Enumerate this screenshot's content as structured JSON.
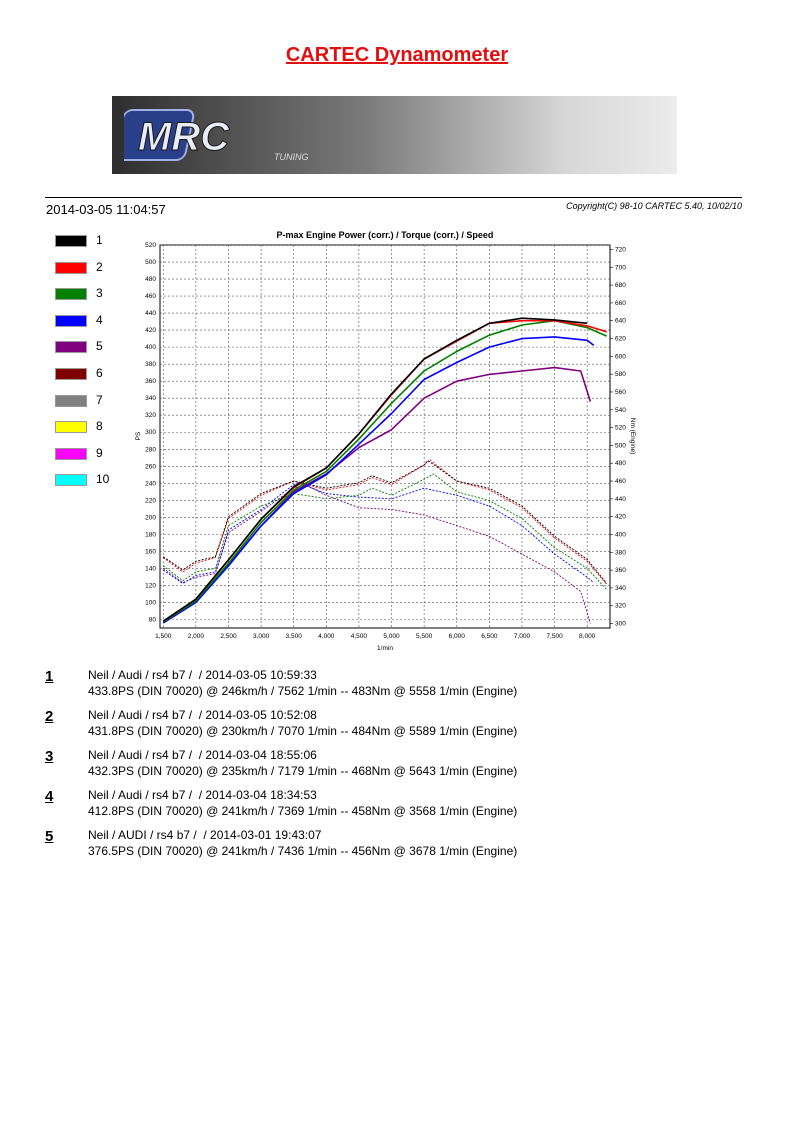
{
  "header": {
    "title": "CARTEC Dynamometer",
    "datetime": "2014-03-05 11:04:57",
    "copyright": "Copyright(C) 98-10 CARTEC 5.40, 10/02/10"
  },
  "banner": {
    "logo_text": "MRC",
    "logo_subtext": "TUNING"
  },
  "legend": [
    {
      "num": "1",
      "color": "#000000"
    },
    {
      "num": "2",
      "color": "#ff0000"
    },
    {
      "num": "3",
      "color": "#008000"
    },
    {
      "num": "4",
      "color": "#0000ff"
    },
    {
      "num": "5",
      "color": "#800080"
    },
    {
      "num": "6",
      "color": "#800000"
    },
    {
      "num": "7",
      "color": "#808080"
    },
    {
      "num": "8",
      "color": "#ffff00"
    },
    {
      "num": "9",
      "color": "#ff00ff"
    },
    {
      "num": "10",
      "color": "#00ffff"
    }
  ],
  "runs": [
    {
      "num": "1",
      "line1": "Neil / Audi / rs4 b7 /  / 2014-03-05 10:59:33",
      "line2": "433.8PS (DIN 70020) @ 246km/h / 7562 1/min -- 483Nm @ 5558 1/min (Engine)"
    },
    {
      "num": "2",
      "line1": "Neil / Audi / rs4 b7 /  / 2014-03-05 10:52:08",
      "line2": "431.8PS (DIN 70020) @ 230km/h / 7070 1/min -- 484Nm @ 5589 1/min (Engine)"
    },
    {
      "num": "3",
      "line1": "Neil / Audi / rs4 b7 /  / 2014-03-04 18:55:06",
      "line2": "432.3PS (DIN 70020) @ 235km/h / 7179 1/min -- 468Nm @ 5643 1/min (Engine)"
    },
    {
      "num": "4",
      "line1": "Neil / Audi / rs4 b7 /  / 2014-03-04 18:34:53",
      "line2": "412.8PS (DIN 70020) @ 241km/h / 7369 1/min -- 458Nm @ 3568 1/min (Engine)"
    },
    {
      "num": "5",
      "line1": "Neil / AUDI / rs4 b7 /  / 2014-03-01 19:43:07",
      "line2": "376.5PS (DIN 70020) @ 241km/h / 7436 1/min -- 456Nm @ 3678 1/min (Engine)"
    }
  ],
  "chart_data": {
    "type": "line",
    "title": "P-max Engine Power (corr.) / Torque (corr.) / Speed",
    "xlabel": "1/min",
    "ylabel_left": "PS",
    "ylabel_right": "Nm (Engine)",
    "xlim": [
      1450,
      8350
    ],
    "ylim_left": [
      70,
      520
    ],
    "ylim_right": [
      295,
      725
    ],
    "x_ticks": [
      1500,
      2000,
      2500,
      3000,
      3500,
      4000,
      4500,
      5000,
      5500,
      6000,
      6500,
      7000,
      7500,
      8000
    ],
    "x_tick_labels": [
      "1,500",
      "2,000",
      "2,500",
      "3,000",
      "3,500",
      "4,000",
      "4,500",
      "5,000",
      "5,500",
      "6,000",
      "6,500",
      "7,000",
      "7,500",
      "8,000"
    ],
    "y_left_ticks": [
      80,
      100,
      120,
      140,
      160,
      180,
      200,
      220,
      240,
      260,
      280,
      300,
      320,
      340,
      360,
      380,
      400,
      420,
      440,
      460,
      480,
      500,
      520
    ],
    "y_right_ticks": [
      300,
      320,
      340,
      360,
      380,
      400,
      420,
      440,
      460,
      480,
      500,
      520,
      540,
      560,
      580,
      600,
      620,
      640,
      660,
      680,
      700,
      720
    ],
    "grid": true,
    "series": [
      {
        "name": "1",
        "color": "#000000",
        "kind": "power",
        "x": [
          1500,
          2000,
          2500,
          3000,
          3500,
          4000,
          4500,
          5000,
          5500,
          6000,
          6500,
          7000,
          7500,
          8000
        ],
        "y": [
          78,
          104,
          150,
          198,
          236,
          258,
          298,
          345,
          386,
          408,
          428,
          434,
          432,
          428
        ]
      },
      {
        "name": "2",
        "color": "#ff0000",
        "kind": "power",
        "x": [
          1500,
          2000,
          2500,
          3000,
          3500,
          4000,
          4500,
          5000,
          5500,
          6000,
          6500,
          7000,
          7500,
          8000,
          8300
        ],
        "y": [
          78,
          104,
          150,
          198,
          235,
          258,
          298,
          344,
          386,
          407,
          428,
          431,
          431,
          425,
          418
        ]
      },
      {
        "name": "3",
        "color": "#008000",
        "kind": "power",
        "x": [
          1500,
          2000,
          2500,
          3000,
          3500,
          4000,
          4500,
          5000,
          5500,
          6000,
          6500,
          7000,
          7500,
          8000,
          8300
        ],
        "y": [
          77,
          102,
          146,
          194,
          232,
          254,
          292,
          334,
          372,
          395,
          414,
          426,
          431,
          423,
          413
        ]
      },
      {
        "name": "4",
        "color": "#0000ff",
        "kind": "power",
        "x": [
          1500,
          2000,
          2500,
          3000,
          3500,
          4000,
          4500,
          5000,
          5500,
          6000,
          6500,
          7000,
          7500,
          8000,
          8100
        ],
        "y": [
          76,
          100,
          143,
          190,
          228,
          250,
          286,
          322,
          362,
          382,
          400,
          410,
          412,
          408,
          402
        ]
      },
      {
        "name": "5",
        "color": "#800080",
        "kind": "power",
        "x": [
          1500,
          2000,
          2500,
          3000,
          3500,
          4000,
          4500,
          5000,
          5500,
          6000,
          6500,
          7000,
          7500,
          7900,
          8050
        ],
        "y": [
          77,
          101,
          144,
          190,
          230,
          251,
          282,
          303,
          340,
          360,
          368,
          372,
          376,
          372,
          336
        ]
      },
      {
        "name": "1",
        "color": "#000000",
        "kind": "torque",
        "x": [
          1500,
          1800,
          2000,
          2300,
          2500,
          3000,
          3500,
          4000,
          4500,
          4700,
          5000,
          5500,
          5558,
          6000,
          6500,
          7000,
          7500,
          8000,
          8300
        ],
        "y": [
          375,
          360,
          370,
          375,
          420,
          446,
          460,
          452,
          458,
          466,
          458,
          478,
          483,
          460,
          452,
          432,
          398,
          372,
          345
        ]
      },
      {
        "name": "2",
        "color": "#ff0000",
        "kind": "torque",
        "x": [
          1500,
          1800,
          2000,
          2300,
          2500,
          3000,
          3500,
          4000,
          4500,
          4700,
          5000,
          5500,
          5589,
          6000,
          6500,
          7000,
          7500,
          8000,
          8300
        ],
        "y": [
          374,
          358,
          368,
          374,
          418,
          444,
          460,
          450,
          456,
          464,
          456,
          478,
          484,
          460,
          450,
          430,
          396,
          370,
          344
        ]
      },
      {
        "name": "3",
        "color": "#008000",
        "kind": "torque",
        "x": [
          1500,
          1800,
          2000,
          2300,
          2500,
          3000,
          3500,
          4000,
          4500,
          4700,
          5000,
          5500,
          5643,
          6000,
          6500,
          7000,
          7500,
          8000,
          8300
        ],
        "y": [
          365,
          348,
          358,
          362,
          410,
          432,
          446,
          440,
          444,
          452,
          444,
          462,
          468,
          448,
          438,
          418,
          385,
          362,
          338
        ]
      },
      {
        "name": "4",
        "color": "#0000ff",
        "kind": "torque",
        "x": [
          1500,
          1800,
          2000,
          2300,
          2500,
          3000,
          3500,
          3568,
          4000,
          4500,
          5000,
          5500,
          6000,
          6500,
          7000,
          7500,
          8000,
          8100
        ],
        "y": [
          360,
          345,
          354,
          358,
          405,
          428,
          456,
          458,
          446,
          442,
          440,
          452,
          444,
          432,
          410,
          378,
          352,
          346
        ]
      },
      {
        "name": "5",
        "color": "#800080",
        "kind": "torque",
        "x": [
          1500,
          1800,
          2000,
          2300,
          2500,
          3000,
          3500,
          3678,
          4000,
          4500,
          5000,
          5500,
          6000,
          6500,
          7000,
          7500,
          7900,
          8050
        ],
        "y": [
          362,
          346,
          352,
          356,
          402,
          426,
          452,
          456,
          444,
          430,
          428,
          422,
          410,
          398,
          378,
          358,
          336,
          300
        ]
      }
    ]
  }
}
